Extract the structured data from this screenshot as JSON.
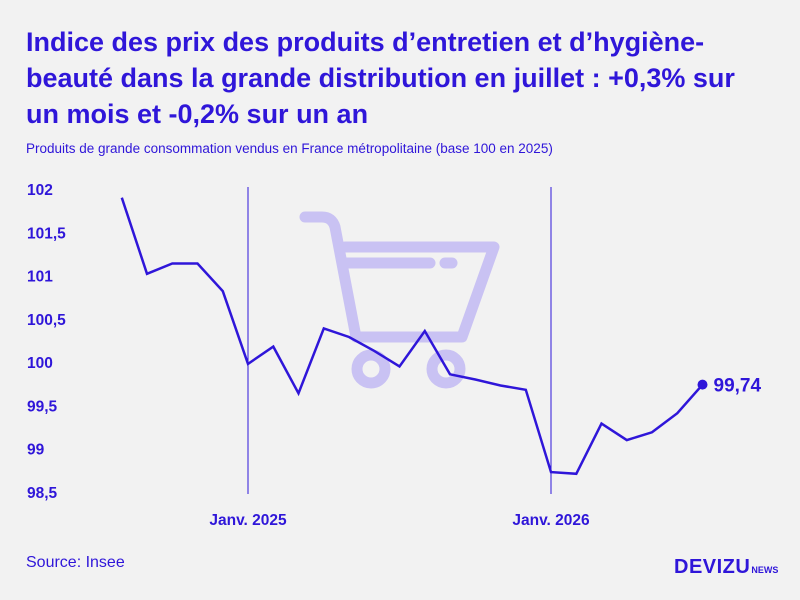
{
  "title": "Indice des prix des produits d’entretien et d’hygiène-beauté dans la grande distribution en juillet : +0,3% sur un mois et -0,2% sur un an",
  "subtitle": "Produits de grande consommation vendus en France métropolitaine (base 100 en 2025)",
  "source": "Source: Insee",
  "brand": {
    "name": "DEVIZU",
    "suffix": "NEWS"
  },
  "colors": {
    "accent": "#2f16d9",
    "illustration": "#c9c2f3",
    "background": "#f2f2f2"
  },
  "illustration_icon": "shopping-cart-icon",
  "chart_data": {
    "type": "line",
    "title": "",
    "xlabel": "",
    "ylabel": "",
    "ylim": [
      98.5,
      102
    ],
    "y_ticks": [
      {
        "value": 102,
        "label": "102"
      },
      {
        "value": 101.5,
        "label": "101,5"
      },
      {
        "value": 101,
        "label": "101"
      },
      {
        "value": 100.5,
        "label": "100,5"
      },
      {
        "value": 100,
        "label": "100"
      },
      {
        "value": 99.5,
        "label": "99,5"
      },
      {
        "value": 99,
        "label": "99"
      },
      {
        "value": 98.5,
        "label": "98,5"
      }
    ],
    "x": [
      "2024-07",
      "2024-08",
      "2024-09",
      "2024-10",
      "2024-11",
      "2025-01",
      "2025-02",
      "2025-03",
      "2025-04",
      "2025-05",
      "2025-06",
      "2025-07",
      "2025-08",
      "2025-09",
      "2025-10",
      "2025-11",
      "2025-12",
      "2026-01",
      "2026-02",
      "2026-03",
      "2026-04",
      "2026-05",
      "2026-06",
      "2026-07"
    ],
    "x_positions": [
      -5,
      -4,
      -3,
      -2,
      -1,
      0,
      1,
      2,
      3,
      4,
      5,
      6,
      7,
      8,
      9,
      10,
      11,
      12,
      13,
      14,
      15,
      16,
      17,
      18
    ],
    "values": [
      101.9,
      101.02,
      101.14,
      101.14,
      100.82,
      99.98,
      100.18,
      99.64,
      100.39,
      100.29,
      100.13,
      99.95,
      100.36,
      99.86,
      99.8,
      99.73,
      99.68,
      98.73,
      98.71,
      99.29,
      99.1,
      99.19,
      99.41,
      99.74
    ],
    "x_ticks": [
      {
        "pos": 0,
        "label": "Janv. 2025"
      },
      {
        "pos": 12,
        "label": "Janv. 2026"
      }
    ],
    "last_value_label": "99,74",
    "grid": false,
    "legend": "none"
  }
}
